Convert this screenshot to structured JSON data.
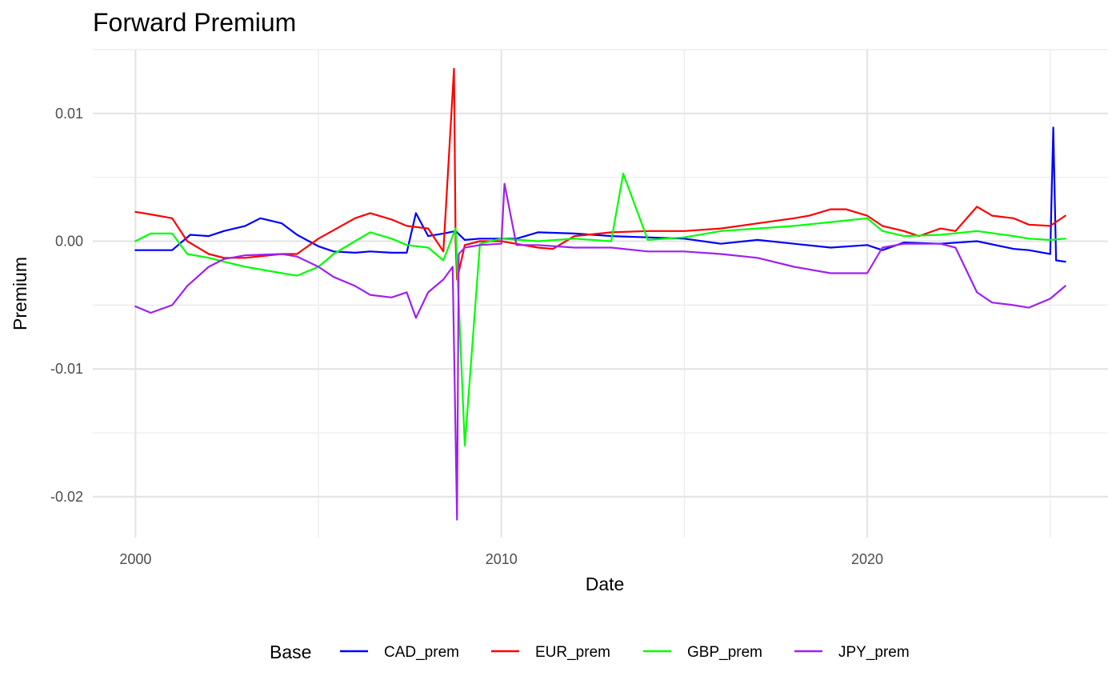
{
  "chart_data": {
    "type": "line",
    "title": "Forward Premium",
    "xlabel": "Date",
    "ylabel": "Premium",
    "x_ticks": [
      "2000",
      "2010",
      "2020"
    ],
    "y_ticks": [
      "0.01",
      "0.00",
      "-0.01",
      "-0.02"
    ],
    "xlim": [
      "1998-11-01",
      "2026-08-01"
    ],
    "ylim": [
      -0.0232,
      0.015
    ],
    "grid": true,
    "legend": {
      "title": "Base",
      "position": "bottom"
    },
    "series": [
      {
        "name": "CAD_prem",
        "color": "#0000ff",
        "x": [
          "2000-01-01",
          "2001-01-01",
          "2001-07-01",
          "2002-01-01",
          "2002-06-01",
          "2003-01-01",
          "2003-06-01",
          "2004-01-01",
          "2004-06-01",
          "2005-01-01",
          "2005-06-01",
          "2006-01-01",
          "2006-06-01",
          "2007-01-01",
          "2007-06-01",
          "2007-09-01",
          "2008-01-01",
          "2008-06-01",
          "2008-10-01",
          "2009-01-01",
          "2009-06-01",
          "2010-01-01",
          "2010-06-01",
          "2011-01-01",
          "2012-01-01",
          "2013-01-01",
          "2014-01-01",
          "2015-01-01",
          "2016-01-01",
          "2017-01-01",
          "2018-01-01",
          "2019-01-01",
          "2020-01-01",
          "2020-06-01",
          "2021-01-01",
          "2022-01-01",
          "2023-01-01",
          "2024-01-01",
          "2024-06-01",
          "2025-01-01",
          "2025-02-01",
          "2025-03-01",
          "2025-06-01"
        ],
        "y": [
          -0.0007,
          -0.0007,
          0.0005,
          0.0004,
          0.0008,
          0.0012,
          0.0018,
          0.0014,
          0.0005,
          -0.0004,
          -0.0008,
          -0.0009,
          -0.0008,
          -0.0009,
          -0.0009,
          0.0022,
          0.0004,
          0.0006,
          0.0008,
          0.0001,
          0.0002,
          0.0002,
          0.0002,
          0.0007,
          0.0006,
          0.0004,
          0.0003,
          0.0002,
          -0.0002,
          0.0001,
          -0.0002,
          -0.0005,
          -0.0003,
          -0.0007,
          -0.0001,
          -0.0002,
          0.0,
          -0.0006,
          -0.0007,
          -0.001,
          0.0089,
          -0.0015,
          -0.0016
        ]
      },
      {
        "name": "EUR_prem",
        "color": "#ff0000",
        "x": [
          "2000-01-01",
          "2000-06-01",
          "2001-01-01",
          "2001-06-01",
          "2002-01-01",
          "2002-06-01",
          "2003-01-01",
          "2004-01-01",
          "2004-06-01",
          "2005-01-01",
          "2006-01-01",
          "2006-06-01",
          "2007-01-01",
          "2007-06-01",
          "2008-01-01",
          "2008-06-01",
          "2008-09-15",
          "2008-10-01",
          "2008-10-15",
          "2009-01-01",
          "2009-06-01",
          "2010-01-01",
          "2011-01-01",
          "2011-06-01",
          "2012-01-01",
          "2013-01-01",
          "2014-01-01",
          "2015-01-01",
          "2016-01-01",
          "2017-01-01",
          "2018-01-01",
          "2018-06-01",
          "2019-01-01",
          "2019-06-01",
          "2020-01-01",
          "2020-06-01",
          "2021-01-01",
          "2021-06-01",
          "2022-01-01",
          "2022-06-01",
          "2023-01-01",
          "2023-06-01",
          "2024-01-01",
          "2024-06-01",
          "2025-01-01",
          "2025-06-01"
        ],
        "y": [
          0.0023,
          0.0021,
          0.0018,
          0.0,
          -0.001,
          -0.0013,
          -0.0013,
          -0.001,
          -0.001,
          0.0002,
          0.0018,
          0.0022,
          0.0017,
          0.0012,
          0.001,
          -0.0008,
          0.0135,
          0.0,
          -0.003,
          -0.0003,
          0.0,
          0.0,
          -0.0005,
          -0.0006,
          0.0004,
          0.0007,
          0.0008,
          0.0008,
          0.001,
          0.0014,
          0.0018,
          0.002,
          0.0025,
          0.0025,
          0.002,
          0.0012,
          0.0008,
          0.0004,
          0.001,
          0.0008,
          0.0027,
          0.002,
          0.0018,
          0.0013,
          0.0012,
          0.002
        ]
      },
      {
        "name": "GBP_prem",
        "color": "#00ff00",
        "x": [
          "2000-01-01",
          "2000-06-01",
          "2001-01-01",
          "2001-06-01",
          "2002-01-01",
          "2002-06-01",
          "2003-01-01",
          "2004-01-01",
          "2004-06-01",
          "2005-01-01",
          "2005-06-01",
          "2006-01-01",
          "2006-06-01",
          "2007-01-01",
          "2007-06-01",
          "2008-01-01",
          "2008-06-01",
          "2008-10-01",
          "2009-01-01",
          "2009-06-01",
          "2010-01-01",
          "2011-01-01",
          "2012-01-01",
          "2013-01-01",
          "2013-05-01",
          "2014-01-01",
          "2015-01-01",
          "2016-01-01",
          "2017-01-01",
          "2018-01-01",
          "2019-01-01",
          "2020-01-01",
          "2020-06-01",
          "2021-01-01",
          "2022-01-01",
          "2023-01-01",
          "2024-01-01",
          "2024-06-01",
          "2025-01-01",
          "2025-06-01"
        ],
        "y": [
          0.0,
          0.0006,
          0.0006,
          -0.001,
          -0.0013,
          -0.0016,
          -0.002,
          -0.0025,
          -0.0027,
          -0.002,
          -0.001,
          0.0,
          0.0007,
          0.0002,
          -0.0003,
          -0.0005,
          -0.0015,
          0.001,
          -0.016,
          -0.0002,
          0.0002,
          0.0,
          0.0002,
          0.0,
          0.0053,
          0.0001,
          0.0003,
          0.0008,
          0.001,
          0.0012,
          0.0015,
          0.0018,
          0.0008,
          0.0004,
          0.0005,
          0.0008,
          0.0004,
          0.0002,
          0.0001,
          0.0002
        ]
      },
      {
        "name": "JPY_prem",
        "color": "#a020f0",
        "x": [
          "2000-01-01",
          "2000-06-01",
          "2001-01-01",
          "2001-06-01",
          "2002-01-01",
          "2002-06-01",
          "2003-01-01",
          "2004-01-01",
          "2004-06-01",
          "2005-01-01",
          "2005-06-01",
          "2006-01-01",
          "2006-06-01",
          "2007-01-01",
          "2007-06-01",
          "2007-09-01",
          "2008-01-01",
          "2008-06-01",
          "2008-09-01",
          "2008-10-15",
          "2008-11-01",
          "2009-01-01",
          "2009-06-01",
          "2010-01-01",
          "2010-02-01",
          "2010-06-01",
          "2011-01-01",
          "2012-01-01",
          "2013-01-01",
          "2014-01-01",
          "2015-01-01",
          "2016-01-01",
          "2017-01-01",
          "2018-01-01",
          "2019-01-01",
          "2020-01-01",
          "2020-06-01",
          "2021-01-01",
          "2022-01-01",
          "2022-06-01",
          "2023-01-01",
          "2023-06-01",
          "2024-01-01",
          "2024-06-01",
          "2025-01-01",
          "2025-06-01"
        ],
        "y": [
          -0.0051,
          -0.0056,
          -0.005,
          -0.0035,
          -0.002,
          -0.0014,
          -0.0011,
          -0.001,
          -0.0012,
          -0.002,
          -0.0028,
          -0.0035,
          -0.0042,
          -0.0044,
          -0.004,
          -0.006,
          -0.004,
          -0.003,
          -0.002,
          -0.0218,
          -0.001,
          -0.0005,
          -0.0003,
          -0.0002,
          0.0045,
          -0.0003,
          -0.0003,
          -0.0005,
          -0.0005,
          -0.0008,
          -0.0008,
          -0.001,
          -0.0013,
          -0.002,
          -0.0025,
          -0.0025,
          -0.0005,
          -0.0002,
          -0.0002,
          -0.0005,
          -0.004,
          -0.0048,
          -0.005,
          -0.0052,
          -0.0045,
          -0.0035
        ]
      }
    ]
  }
}
